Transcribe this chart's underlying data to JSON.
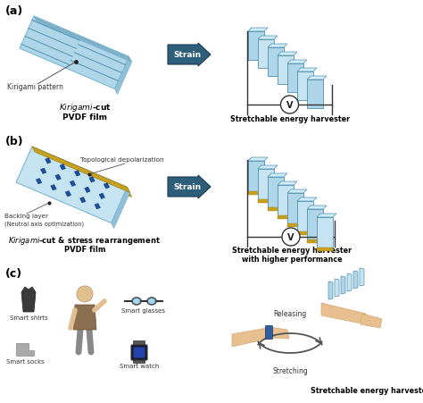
{
  "fig_width": 4.74,
  "fig_height": 4.52,
  "dpi": 100,
  "bg_color": "#ffffff",
  "light_blue": "#aed6e8",
  "light_blue2": "#c5e3f0",
  "medium_blue": "#8ec8e0",
  "dark_blue_sq": "#2255a0",
  "arrow_color": "#2d5f7a",
  "gold_color": "#c8a020",
  "panel_a_label": "(a)",
  "panel_b_label": "(b)",
  "panel_c_label": "(c)",
  "kirigami_label": "Kirigami pattern",
  "pvdf_label_a2": "PVDF film",
  "strain_label": "Strain",
  "harvester_label_a": "Stretchable energy harvester",
  "topo_label": "Topological depolarization",
  "backing_label": "Backing layer",
  "neutral_label": "(Neutral axis optimization)",
  "pvdf_label_b2": "PVDF film",
  "harvester_label_b1": "Stretchable energy harvester",
  "harvester_label_b2": "with higher performance",
  "smart_shirts": "Smart shirts",
  "smart_socks": "Smart socks",
  "smart_glasses": "Smart glasses",
  "smart_watch": "Smart watch",
  "releasing_label": "Releasing",
  "stretching_label": "Stretching",
  "harvester_label_c": "Stretchable energy harvester",
  "skin_color": "#e8c090",
  "skin_dark": "#d4a870"
}
